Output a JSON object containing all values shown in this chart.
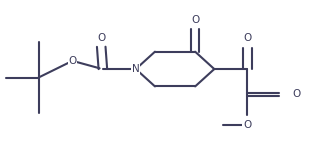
{
  "bg_color": "#ffffff",
  "line_color": "#3d3d5c",
  "lw": 1.5,
  "fs": 7.5,
  "xlim": [
    0,
    1
  ],
  "ylim": [
    0,
    1
  ],
  "figsize": [
    3.31,
    1.55
  ],
  "dpi": 100
}
